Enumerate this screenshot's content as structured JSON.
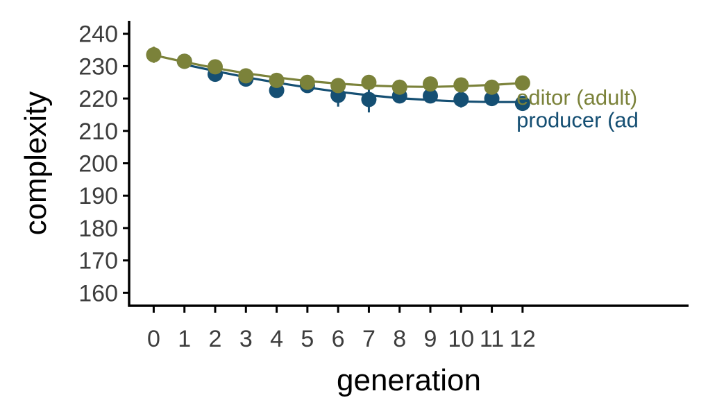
{
  "chart_data": {
    "type": "line",
    "xlabel": "generation",
    "ylabel": "complexity",
    "ylim": [
      156,
      244
    ],
    "xlim": [
      -0.8,
      17.4
    ],
    "x_ticks": [
      0,
      1,
      2,
      3,
      4,
      5,
      6,
      7,
      8,
      9,
      10,
      11,
      12
    ],
    "x_tick_labels": [
      "0",
      "1",
      "2",
      "3",
      "4",
      "5",
      "6",
      "7",
      "8",
      "9",
      "10",
      "11",
      "12"
    ],
    "y_ticks": [
      160,
      170,
      180,
      190,
      200,
      210,
      220,
      230,
      240
    ],
    "y_tick_labels": [
      "160",
      "170",
      "180",
      "190",
      "200",
      "210",
      "220",
      "230",
      "240"
    ],
    "grid": false,
    "legend": "direct labels at right end of lines",
    "series": [
      {
        "name": "producer (adult)",
        "color": "#154F73",
        "points": [
          {
            "x": 1,
            "y": 231.5,
            "err": 1.2
          },
          {
            "x": 2,
            "y": 227.5,
            "err": 1.2
          },
          {
            "x": 3,
            "y": 226.0,
            "err": 1.5
          },
          {
            "x": 4,
            "y": 222.5,
            "err": 2.0
          },
          {
            "x": 5,
            "y": 224.0,
            "err": 1.2
          },
          {
            "x": 6,
            "y": 221.0,
            "err": 3.5
          },
          {
            "x": 7,
            "y": 219.7,
            "err": 4.0
          },
          {
            "x": 8,
            "y": 220.8,
            "err": 1.5
          },
          {
            "x": 9,
            "y": 220.8,
            "err": 1.8
          },
          {
            "x": 10,
            "y": 219.7,
            "err": 2.5
          },
          {
            "x": 11,
            "y": 220.0,
            "err": 1.2
          },
          {
            "x": 12,
            "y": 218.5,
            "err": 1.5
          }
        ],
        "fit": [
          {
            "x": 1,
            "y": 230.5
          },
          {
            "x": 2,
            "y": 228.5
          },
          {
            "x": 3,
            "y": 226.6
          },
          {
            "x": 4,
            "y": 224.9
          },
          {
            "x": 5,
            "y": 223.4
          },
          {
            "x": 6,
            "y": 222.1
          },
          {
            "x": 7,
            "y": 221.0
          },
          {
            "x": 8,
            "y": 220.1
          },
          {
            "x": 9,
            "y": 219.5
          },
          {
            "x": 10,
            "y": 219.1
          },
          {
            "x": 11,
            "y": 218.9
          },
          {
            "x": 12,
            "y": 218.9
          }
        ]
      },
      {
        "name": "editor (adult)",
        "color": "#7B823A",
        "points": [
          {
            "x": 0,
            "y": 233.5,
            "err": 2.5
          },
          {
            "x": 1,
            "y": 231.5,
            "err": 1.5
          },
          {
            "x": 2,
            "y": 229.8,
            "err": 1.2
          },
          {
            "x": 3,
            "y": 227.0,
            "err": 1.2
          },
          {
            "x": 4,
            "y": 225.6,
            "err": 1.2
          },
          {
            "x": 5,
            "y": 225.0,
            "err": 1.0
          },
          {
            "x": 6,
            "y": 224.0,
            "err": 1.2
          },
          {
            "x": 7,
            "y": 225.0,
            "err": 1.0
          },
          {
            "x": 8,
            "y": 223.5,
            "err": 1.0
          },
          {
            "x": 9,
            "y": 224.5,
            "err": 1.0
          },
          {
            "x": 10,
            "y": 224.2,
            "err": 1.0
          },
          {
            "x": 11,
            "y": 223.5,
            "err": 1.0
          },
          {
            "x": 12,
            "y": 224.8,
            "err": 1.0
          }
        ],
        "fit": [
          {
            "x": 0,
            "y": 233.4
          },
          {
            "x": 1,
            "y": 231.3
          },
          {
            "x": 2,
            "y": 229.4
          },
          {
            "x": 3,
            "y": 227.8
          },
          {
            "x": 4,
            "y": 226.5
          },
          {
            "x": 5,
            "y": 225.4
          },
          {
            "x": 6,
            "y": 224.6
          },
          {
            "x": 7,
            "y": 224.0
          },
          {
            "x": 8,
            "y": 223.7
          },
          {
            "x": 9,
            "y": 223.6
          },
          {
            "x": 10,
            "y": 223.8
          },
          {
            "x": 11,
            "y": 224.2
          },
          {
            "x": 12,
            "y": 224.8
          }
        ]
      }
    ],
    "labels": [
      {
        "series": "editor (adult)",
        "text": "editor (adult)",
        "color": "#7B823A",
        "x": 12.3,
        "y": 220.5
      },
      {
        "series": "producer (adult)",
        "text": "producer (ad",
        "color": "#154F73",
        "x": 12.3,
        "y": 213.5
      }
    ]
  }
}
